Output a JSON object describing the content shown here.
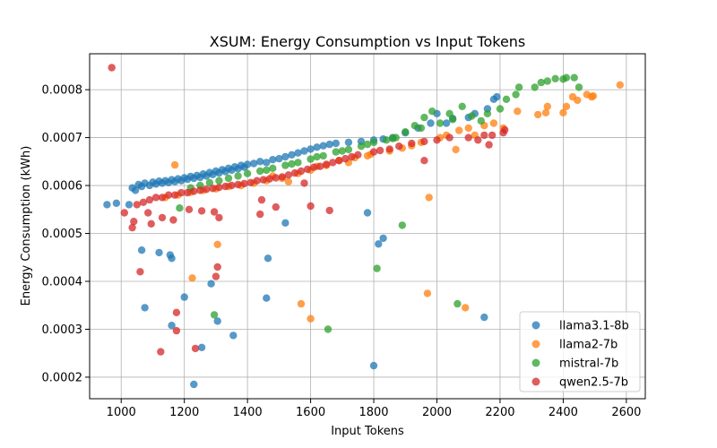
{
  "chart_data": {
    "type": "scatter",
    "title": "XSUM: Energy Consumption vs Input Tokens",
    "xlabel": "Input Tokens",
    "ylabel": "Energy Consumption (kWh)",
    "xlim": [
      900,
      2660
    ],
    "ylim": [
      0.000155,
      0.000875
    ],
    "xticks": [
      1000,
      1200,
      1400,
      1600,
      1800,
      2000,
      2200,
      2400,
      2600
    ],
    "yticks": [
      0.0002,
      0.0003,
      0.0004,
      0.0005,
      0.0006,
      0.0007,
      0.0008
    ],
    "ytick_labels": [
      "0.0002",
      "0.0003",
      "0.0004",
      "0.0005",
      "0.0006",
      "0.0007",
      "0.0008"
    ],
    "grid": true,
    "legend_position": "lower-right",
    "series": [
      {
        "name": "llama3.1-8b",
        "color": "#1f77b4",
        "points": [
          [
            955,
            0.00056
          ],
          [
            985,
            0.000563
          ],
          [
            1025,
            0.00056
          ],
          [
            1065,
            0.000465
          ],
          [
            1075,
            0.000345
          ],
          [
            1120,
            0.00046
          ],
          [
            1155,
            0.000455
          ],
          [
            1160,
            0.000448
          ],
          [
            1160,
            0.000308
          ],
          [
            1200,
            0.000367
          ],
          [
            1230,
            0.000185
          ],
          [
            1255,
            0.000262
          ],
          [
            1285,
            0.000395
          ],
          [
            1305,
            0.000317
          ],
          [
            1355,
            0.000287
          ],
          [
            1460,
            0.000365
          ],
          [
            1465,
            0.000448
          ],
          [
            1520,
            0.000522
          ],
          [
            1780,
            0.000543
          ],
          [
            1800,
            0.000224
          ],
          [
            1815,
            0.000478
          ],
          [
            1830,
            0.00049
          ],
          [
            2000,
            0.00075
          ],
          [
            2030,
            0.00073
          ],
          [
            2100,
            0.000742
          ],
          [
            2150,
            0.000325
          ],
          [
            2160,
            0.00076
          ],
          [
            2180,
            0.00078
          ],
          [
            2190,
            0.000785
          ],
          [
            1035,
            0.000595
          ],
          [
            1045,
            0.00059
          ],
          [
            1055,
            0.000602
          ],
          [
            1065,
            0.000598
          ],
          [
            1075,
            0.000605
          ],
          [
            1090,
            0.0006
          ],
          [
            1100,
            0.000607
          ],
          [
            1110,
            0.000603
          ],
          [
            1120,
            0.000609
          ],
          [
            1130,
            0.000605
          ],
          [
            1140,
            0.00061
          ],
          [
            1150,
            0.000606
          ],
          [
            1160,
            0.000612
          ],
          [
            1170,
            0.000608
          ],
          [
            1180,
            0.000614
          ],
          [
            1190,
            0.00061
          ],
          [
            1200,
            0.000616
          ],
          [
            1210,
            0.000613
          ],
          [
            1220,
            0.000619
          ],
          [
            1230,
            0.000615
          ],
          [
            1240,
            0.000621
          ],
          [
            1250,
            0.000617
          ],
          [
            1260,
            0.000624
          ],
          [
            1270,
            0.00062
          ],
          [
            1280,
            0.000627
          ],
          [
            1290,
            0.000623
          ],
          [
            1300,
            0.00063
          ],
          [
            1310,
            0.000626
          ],
          [
            1320,
            0.000633
          ],
          [
            1330,
            0.000629
          ],
          [
            1340,
            0.000636
          ],
          [
            1350,
            0.000632
          ],
          [
            1360,
            0.000639
          ],
          [
            1370,
            0.000635
          ],
          [
            1380,
            0.000642
          ],
          [
            1390,
            0.000638
          ],
          [
            1400,
            0.000644
          ],
          [
            1420,
            0.000646
          ],
          [
            1440,
            0.00065
          ],
          [
            1460,
            0.000648
          ],
          [
            1480,
            0.000654
          ],
          [
            1500,
            0.000656
          ],
          [
            1520,
            0.00066
          ],
          [
            1540,
            0.000664
          ],
          [
            1560,
            0.000668
          ],
          [
            1580,
            0.000672
          ],
          [
            1600,
            0.000676
          ],
          [
            1620,
            0.00068
          ],
          [
            1640,
            0.000683
          ],
          [
            1660,
            0.000686
          ],
          [
            1680,
            0.000688
          ],
          [
            1720,
            0.00069
          ],
          [
            1760,
            0.000692
          ],
          [
            1800,
            0.000695
          ],
          [
            1830,
            0.000697
          ],
          [
            1860,
            0.0007
          ],
          [
            1900,
            0.00071
          ],
          [
            1940,
            0.00072
          ],
          [
            1980,
            0.00073
          ],
          [
            2050,
            0.00074
          ],
          [
            2120,
            0.00075
          ]
        ]
      },
      {
        "name": "llama2-7b",
        "color": "#ff7f0e",
        "points": [
          [
            1170,
            0.000643
          ],
          [
            1225,
            0.000407
          ],
          [
            1305,
            0.000477
          ],
          [
            1570,
            0.000353
          ],
          [
            1600,
            0.000322
          ],
          [
            1970,
            0.000375
          ],
          [
            1975,
            0.000575
          ],
          [
            2060,
            0.000675
          ],
          [
            2090,
            0.000345
          ],
          [
            2255,
            0.000755
          ],
          [
            2320,
            0.000748
          ],
          [
            2345,
            0.000752
          ],
          [
            2350,
            0.000765
          ],
          [
            2400,
            0.000752
          ],
          [
            2410,
            0.000765
          ],
          [
            2430,
            0.000785
          ],
          [
            2445,
            0.000778
          ],
          [
            2475,
            0.00079
          ],
          [
            2490,
            0.000785
          ],
          [
            2495,
            0.000787
          ],
          [
            2580,
            0.00081
          ],
          [
            2210,
            0.00072
          ],
          [
            2150,
            0.000725
          ],
          [
            2120,
            0.000705
          ],
          [
            2070,
            0.000715
          ],
          [
            2010,
            0.0007
          ],
          [
            1950,
            0.00069
          ],
          [
            1890,
            0.000678
          ],
          [
            1850,
            0.000672
          ],
          [
            1790,
            0.000665
          ],
          [
            1740,
            0.000658
          ],
          [
            1690,
            0.000652
          ],
          [
            1650,
            0.000642
          ],
          [
            1600,
            0.000632
          ],
          [
            1560,
            0.000625
          ],
          [
            1510,
            0.000615
          ],
          [
            1460,
            0.00061
          ],
          [
            1420,
            0.000605
          ],
          [
            1380,
            0.0006
          ],
          [
            1340,
            0.000598
          ],
          [
            1300,
            0.000593
          ],
          [
            1260,
            0.00059
          ],
          [
            1220,
            0.000586
          ],
          [
            1180,
            0.00058
          ],
          [
            1140,
            0.000575
          ],
          [
            1480,
            0.00062
          ],
          [
            1530,
            0.000608
          ],
          [
            1620,
            0.00064
          ],
          [
            1720,
            0.000648
          ],
          [
            1780,
            0.000662
          ],
          [
            1920,
            0.000683
          ],
          [
            2030,
            0.000705
          ],
          [
            2100,
            0.00072
          ],
          [
            2180,
            0.00073
          ]
        ]
      },
      {
        "name": "mistral-7b",
        "color": "#2ca02c",
        "points": [
          [
            1185,
            0.000553
          ],
          [
            1295,
            0.00033
          ],
          [
            1655,
            0.0003
          ],
          [
            1810,
            0.000427
          ],
          [
            1890,
            0.000517
          ],
          [
            2065,
            0.000353
          ],
          [
            2220,
            0.00078
          ],
          [
            2250,
            0.00079
          ],
          [
            2260,
            0.000805
          ],
          [
            2310,
            0.000805
          ],
          [
            2330,
            0.000815
          ],
          [
            2350,
            0.000818
          ],
          [
            2375,
            0.000823
          ],
          [
            2400,
            0.000822
          ],
          [
            2410,
            0.000825
          ],
          [
            2435,
            0.000825
          ],
          [
            2450,
            0.000805
          ],
          [
            2200,
            0.00076
          ],
          [
            2160,
            0.00075
          ],
          [
            2140,
            0.000735
          ],
          [
            2110,
            0.000745
          ],
          [
            2080,
            0.000765
          ],
          [
            2040,
            0.00075
          ],
          [
            2010,
            0.00073
          ],
          [
            1985,
            0.000755
          ],
          [
            1960,
            0.000742
          ],
          [
            1930,
            0.000725
          ],
          [
            1900,
            0.000712
          ],
          [
            1870,
            0.0007
          ],
          [
            1840,
            0.000695
          ],
          [
            1800,
            0.00069
          ],
          [
            1760,
            0.000682
          ],
          [
            1720,
            0.000675
          ],
          [
            1680,
            0.00067
          ],
          [
            1640,
            0.000662
          ],
          [
            1600,
            0.000655
          ],
          [
            1560,
            0.000648
          ],
          [
            1520,
            0.000642
          ],
          [
            1480,
            0.000636
          ],
          [
            1440,
            0.00063
          ],
          [
            1400,
            0.000625
          ],
          [
            1370,
            0.00062
          ],
          [
            1340,
            0.000615
          ],
          [
            1310,
            0.00061
          ],
          [
            1280,
            0.000606
          ],
          [
            1250,
            0.0006
          ],
          [
            1220,
            0.000595
          ],
          [
            1460,
            0.000632
          ],
          [
            1540,
            0.000645
          ],
          [
            1620,
            0.00066
          ],
          [
            1700,
            0.000672
          ],
          [
            1780,
            0.000686
          ],
          [
            1860,
            0.000698
          ],
          [
            1950,
            0.00072
          ],
          [
            2050,
            0.000738
          ]
        ]
      },
      {
        "name": "qwen2.5-7b",
        "color": "#d62728",
        "points": [
          [
            970,
            0.000846
          ],
          [
            1010,
            0.000543
          ],
          [
            1035,
            0.000512
          ],
          [
            1040,
            0.000525
          ],
          [
            1060,
            0.00042
          ],
          [
            1085,
            0.000543
          ],
          [
            1095,
            0.00052
          ],
          [
            1125,
            0.000253
          ],
          [
            1130,
            0.000533
          ],
          [
            1165,
            0.000528
          ],
          [
            1175,
            0.000297
          ],
          [
            1175,
            0.000335
          ],
          [
            1215,
            0.00055
          ],
          [
            1235,
            0.00026
          ],
          [
            1255,
            0.000547
          ],
          [
            1295,
            0.000545
          ],
          [
            1300,
            0.00041
          ],
          [
            1305,
            0.00043
          ],
          [
            1310,
            0.000533
          ],
          [
            1440,
            0.00054
          ],
          [
            1445,
            0.00057
          ],
          [
            1490,
            0.000555
          ],
          [
            1580,
            0.000605
          ],
          [
            1600,
            0.000557
          ],
          [
            1660,
            0.000548
          ],
          [
            1960,
            0.000652
          ],
          [
            2165,
            0.000685
          ],
          [
            2175,
            0.000705
          ],
          [
            2210,
            0.00071
          ],
          [
            2215,
            0.000716
          ],
          [
            1050,
            0.00056
          ],
          [
            1070,
            0.000565
          ],
          [
            1090,
            0.00057
          ],
          [
            1110,
            0.000575
          ],
          [
            1130,
            0.000575
          ],
          [
            1150,
            0.00058
          ],
          [
            1170,
            0.00058
          ],
          [
            1190,
            0.000585
          ],
          [
            1210,
            0.000585
          ],
          [
            1230,
            0.000588
          ],
          [
            1250,
            0.00059
          ],
          [
            1270,
            0.000592
          ],
          [
            1290,
            0.000594
          ],
          [
            1310,
            0.000596
          ],
          [
            1330,
            0.000598
          ],
          [
            1350,
            0.0006
          ],
          [
            1370,
            0.000602
          ],
          [
            1390,
            0.000604
          ],
          [
            1410,
            0.000606
          ],
          [
            1430,
            0.00061
          ],
          [
            1450,
            0.000612
          ],
          [
            1470,
            0.000614
          ],
          [
            1490,
            0.000616
          ],
          [
            1510,
            0.000618
          ],
          [
            1530,
            0.000622
          ],
          [
            1550,
            0.000626
          ],
          [
            1570,
            0.00063
          ],
          [
            1590,
            0.000634
          ],
          [
            1610,
            0.000638
          ],
          [
            1630,
            0.00064
          ],
          [
            1650,
            0.000644
          ],
          [
            1670,
            0.000648
          ],
          [
            1690,
            0.000652
          ],
          [
            1710,
            0.000656
          ],
          [
            1730,
            0.00066
          ],
          [
            1750,
            0.000664
          ],
          [
            1800,
            0.00067
          ],
          [
            1820,
            0.000673
          ],
          [
            1850,
            0.000676
          ],
          [
            1880,
            0.000682
          ],
          [
            1920,
            0.000688
          ],
          [
            1960,
            0.000692
          ],
          [
            2000,
            0.000695
          ],
          [
            2040,
            0.0007
          ],
          [
            2100,
            0.0007
          ],
          [
            2130,
            0.000695
          ],
          [
            2150,
            0.000705
          ]
        ]
      }
    ]
  }
}
